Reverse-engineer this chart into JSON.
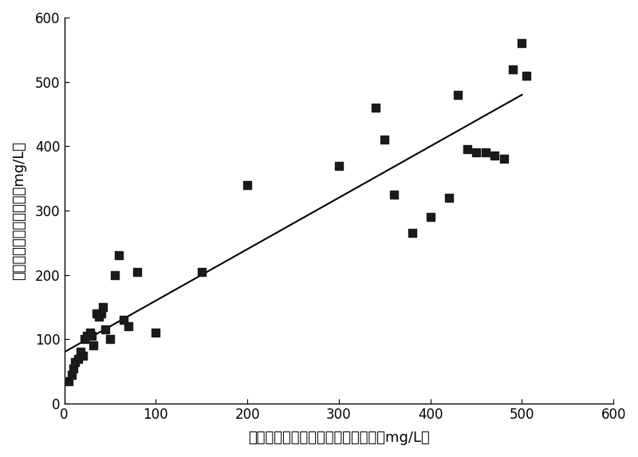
{
  "x_data": [
    5,
    8,
    10,
    12,
    15,
    18,
    20,
    22,
    25,
    28,
    30,
    32,
    35,
    38,
    40,
    42,
    45,
    50,
    55,
    60,
    65,
    70,
    80,
    100,
    150,
    200,
    300,
    340,
    350,
    360,
    380,
    400,
    420,
    430,
    440,
    450,
    460,
    470,
    480,
    490,
    500,
    505
  ],
  "y_data": [
    35,
    45,
    55,
    65,
    70,
    80,
    75,
    100,
    105,
    110,
    105,
    90,
    140,
    135,
    140,
    150,
    115,
    100,
    200,
    230,
    130,
    120,
    205,
    110,
    205,
    340,
    370,
    460,
    410,
    325,
    265,
    290,
    320,
    480,
    395,
    390,
    390,
    385,
    380,
    520,
    560,
    510
  ],
  "line_x": [
    0,
    500
  ],
  "line_y": [
    80,
    480
  ],
  "xlabel": "清蛋白浓度（免疫速率散射比浊法，mg/L）",
  "ylabel": "清蛋白浓度（膜染色法，mg/L）",
  "xlim": [
    0,
    600
  ],
  "ylim": [
    0,
    600
  ],
  "xticks": [
    0,
    100,
    200,
    300,
    400,
    500,
    600
  ],
  "yticks": [
    0,
    100,
    200,
    300,
    400,
    500,
    600
  ],
  "marker_color": "#1a1a1a",
  "line_color": "#000000",
  "marker_size": 7,
  "xlabel_fontsize": 13,
  "ylabel_fontsize": 13,
  "tick_fontsize": 12
}
